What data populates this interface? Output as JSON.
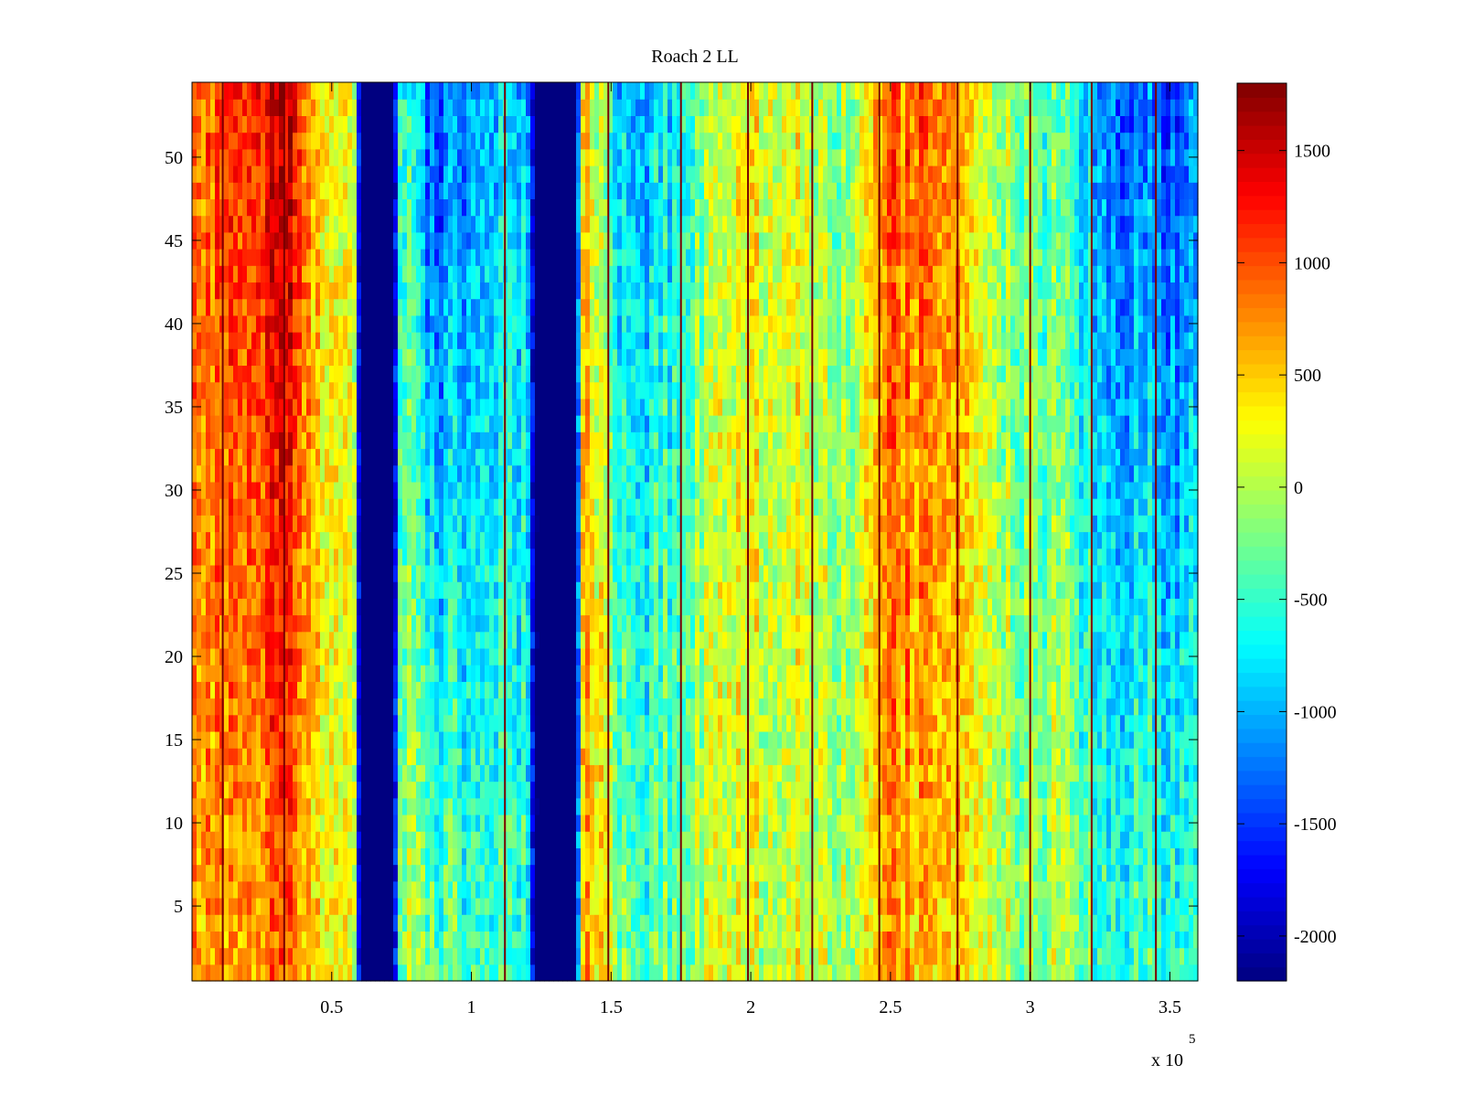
{
  "chart_data": {
    "type": "heatmap",
    "title": "Roach 2 LL",
    "xlabel": "",
    "ylabel": "",
    "x_exponent_label": "x 10",
    "x_exponent_power": "5",
    "xlim": [
      0,
      3.6
    ],
    "ylim": [
      0.5,
      54.5
    ],
    "xticks": [
      0.5,
      1,
      1.5,
      2,
      2.5,
      3,
      3.5
    ],
    "xtick_labels": [
      "0.5",
      "1",
      "1.5",
      "2",
      "2.5",
      "3",
      "3.5"
    ],
    "yticks": [
      5,
      10,
      15,
      20,
      25,
      30,
      35,
      40,
      45,
      50
    ],
    "ytick_labels": [
      "5",
      "10",
      "15",
      "20",
      "25",
      "30",
      "35",
      "40",
      "45",
      "50"
    ],
    "colorbar": {
      "colormap": "jet",
      "clim": [
        -2200,
        1800
      ],
      "ticks": [
        -2000,
        -1500,
        -1000,
        -500,
        0,
        500,
        1000,
        1500
      ],
      "tick_labels": [
        "-2000",
        "-1500",
        "-1000",
        "-500",
        "0",
        "500",
        "1000",
        "1500"
      ]
    },
    "rows": 54,
    "column_profile": {
      "x": [
        0.0,
        0.1,
        0.2,
        0.3,
        0.35,
        0.4,
        0.5,
        0.58,
        0.6,
        0.72,
        0.75,
        0.85,
        0.95,
        1.05,
        1.2,
        1.23,
        1.37,
        1.4,
        1.5,
        1.6,
        1.7,
        1.8,
        1.9,
        2.0,
        2.1,
        2.2,
        2.3,
        2.4,
        2.5,
        2.6,
        2.7,
        2.8,
        2.9,
        3.0,
        3.1,
        3.2,
        3.3,
        3.4,
        3.5,
        3.6
      ],
      "bottom": [
        700,
        650,
        500,
        800,
        900,
        550,
        300,
        150,
        -2200,
        -2200,
        100,
        -300,
        -400,
        -300,
        -500,
        -2200,
        -2200,
        800,
        100,
        -400,
        -300,
        0,
        200,
        100,
        150,
        100,
        0,
        150,
        700,
        500,
        700,
        200,
        0,
        -100,
        0,
        -300,
        -500,
        -300,
        -500,
        -400
      ],
      "top": [
        900,
        1000,
        1000,
        1400,
        1500,
        900,
        300,
        0,
        -2200,
        -2200,
        -200,
        -1500,
        -1300,
        -800,
        -900,
        -2200,
        -2200,
        700,
        -700,
        -1000,
        -800,
        -300,
        100,
        300,
        300,
        100,
        -200,
        200,
        900,
        900,
        1000,
        300,
        -100,
        -200,
        -400,
        -800,
        -1300,
        -1100,
        -1500,
        -1000
      ]
    },
    "blank_bands": [
      {
        "x_start": 0.6,
        "x_end": 0.72,
        "value": -2200
      },
      {
        "x_start": 1.25,
        "x_end": 1.37,
        "value": -2200
      }
    ],
    "dark_lines_x": [
      0.11,
      0.33,
      1.12,
      1.49,
      1.75,
      1.99,
      2.22,
      2.46,
      2.74,
      3.0,
      3.22,
      3.45
    ]
  }
}
